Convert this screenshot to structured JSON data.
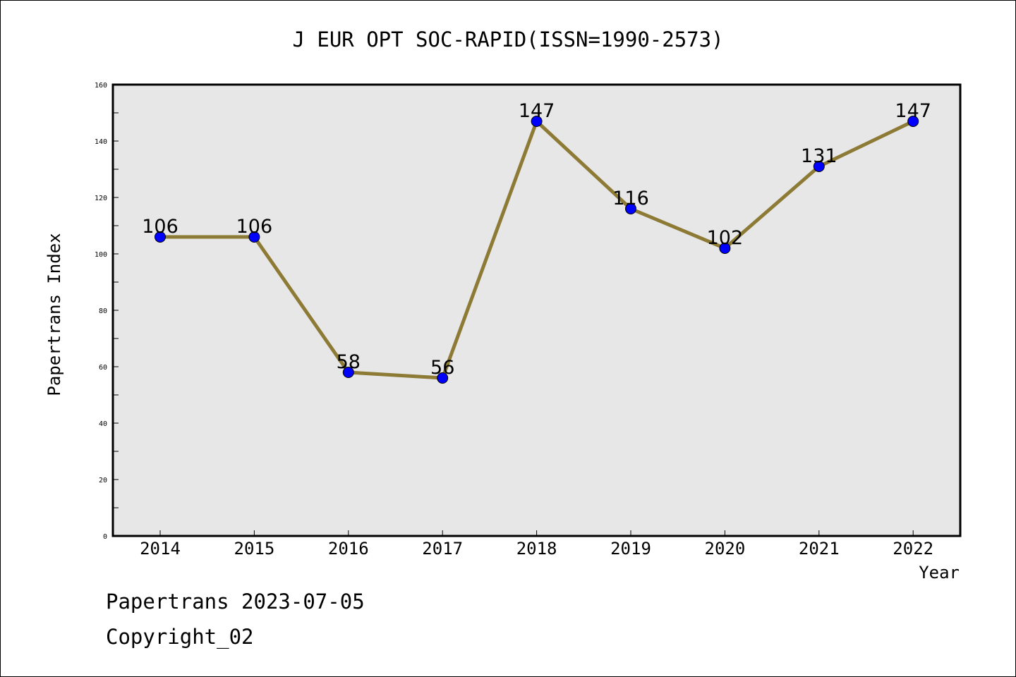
{
  "chart_data": {
    "type": "line",
    "title": "J EUR OPT SOC-RAPID(ISSN=1990-2573)",
    "xlabel": "Year",
    "ylabel": "Papertrans Index",
    "categories": [
      "2014",
      "2015",
      "2016",
      "2017",
      "2018",
      "2019",
      "2020",
      "2021",
      "2022"
    ],
    "series": [
      {
        "values": [
          106,
          106,
          58,
          56,
          147,
          116,
          102,
          131,
          147
        ]
      }
    ],
    "ylim": [
      0,
      160
    ],
    "yticks": [
      0,
      20,
      40,
      60,
      80,
      100,
      120,
      140,
      160
    ],
    "grid": false,
    "line_color": "#8c7a35",
    "marker_color": "#0000ff",
    "plot_background": "#e7e7e7"
  },
  "footer": {
    "line1": "Papertrans 2023-07-05",
    "line2": "Copyright_02"
  }
}
